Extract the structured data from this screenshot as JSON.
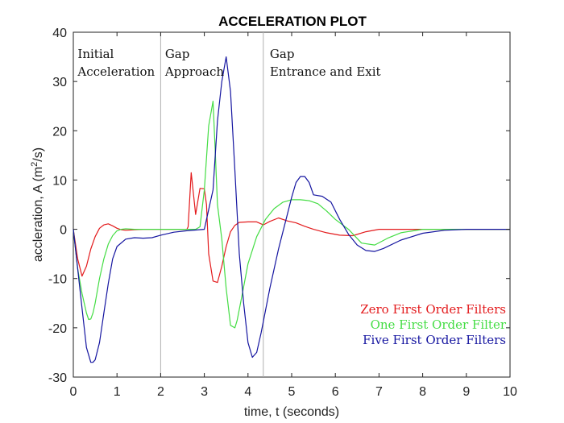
{
  "chart_data": {
    "type": "line",
    "title": "ACCELERATION PLOT",
    "xlabel": "time, t (seconds)",
    "ylabel_main": "accleration, A (m",
    "ylabel_sup": "2",
    "ylabel_tail": "/s)",
    "xlim": [
      0,
      10
    ],
    "ylim": [
      -30,
      40
    ],
    "xticks": [
      0,
      1,
      2,
      3,
      4,
      5,
      6,
      7,
      8,
      9,
      10
    ],
    "yticks": [
      -30,
      -20,
      -10,
      0,
      10,
      20,
      30,
      40
    ],
    "grid": false,
    "legend_position": "bottom-right",
    "phase_dividers": [
      2.0,
      4.35
    ],
    "annotations": [
      {
        "x": 0.1,
        "lines": [
          "Initial",
          "Acceleration"
        ]
      },
      {
        "x": 2.1,
        "lines": [
          "Gap",
          "Approach"
        ]
      },
      {
        "x": 4.5,
        "lines": [
          "Gap",
          "Entrance and Exit"
        ]
      }
    ],
    "series": [
      {
        "name": "Zero First Order Filters",
        "color": "#e31a1c",
        "x": [
          0,
          0.1,
          0.2,
          0.3,
          0.4,
          0.5,
          0.6,
          0.7,
          0.8,
          0.9,
          1.0,
          1.1,
          1.2,
          1.4,
          1.6,
          1.8,
          2.0,
          2.2,
          2.4,
          2.6,
          2.63,
          2.7,
          2.8,
          2.9,
          3.0,
          3.05,
          3.1,
          3.2,
          3.3,
          3.4,
          3.5,
          3.6,
          3.7,
          3.8,
          4.0,
          4.2,
          4.35,
          4.5,
          4.7,
          4.9,
          5.1,
          5.3,
          5.5,
          5.8,
          6.1,
          6.4,
          6.7,
          7.0,
          7.5,
          8.0,
          9.0,
          10.0
        ],
        "y": [
          0,
          -6,
          -9.5,
          -7.5,
          -4,
          -1.5,
          0.2,
          0.9,
          1.1,
          0.7,
          0.2,
          -0.1,
          -0.2,
          -0.1,
          0,
          0,
          0,
          0,
          0,
          0,
          0.5,
          11.5,
          3,
          8.3,
          8.2,
          5,
          -5,
          -10.5,
          -10.8,
          -7.5,
          -3.5,
          -0.5,
          0.8,
          1.4,
          1.5,
          1.5,
          0.9,
          1.6,
          2.3,
          1.7,
          1.3,
          0.6,
          0,
          -0.7,
          -1.2,
          -1.3,
          -0.5,
          0,
          0,
          0,
          0,
          0
        ]
      },
      {
        "name": "One First Order Filter",
        "color": "#44dd44",
        "x": [
          0,
          0.1,
          0.2,
          0.3,
          0.35,
          0.4,
          0.45,
          0.5,
          0.6,
          0.7,
          0.8,
          0.9,
          1.0,
          1.1,
          1.2,
          1.4,
          1.6,
          1.8,
          2.0,
          2.4,
          2.8,
          2.9,
          3.0,
          3.1,
          3.2,
          3.25,
          3.3,
          3.4,
          3.5,
          3.6,
          3.7,
          3.75,
          3.85,
          4.0,
          4.2,
          4.4,
          4.6,
          4.8,
          5.0,
          5.2,
          5.4,
          5.6,
          5.8,
          6.0,
          6.3,
          6.6,
          6.9,
          7.2,
          7.5,
          8.0,
          8.5,
          9.0,
          10.0
        ],
        "y": [
          0,
          -8,
          -13,
          -17,
          -18.3,
          -18.2,
          -17,
          -15,
          -10,
          -6,
          -3,
          -1.3,
          -0.3,
          0,
          0.1,
          0,
          0,
          0,
          0,
          0,
          0,
          0.5,
          8,
          21,
          26,
          16,
          5,
          -2,
          -12,
          -19.5,
          -20,
          -18.5,
          -14,
          -7,
          -1.5,
          2,
          4.2,
          5.5,
          6,
          6,
          5.8,
          5.2,
          3.7,
          2,
          0,
          -2.8,
          -3.2,
          -1.8,
          -0.7,
          0,
          0,
          0,
          0
        ]
      },
      {
        "name": "Five First Order Filters",
        "color": "#1515a0",
        "x": [
          0,
          0.1,
          0.2,
          0.3,
          0.4,
          0.45,
          0.5,
          0.6,
          0.7,
          0.8,
          0.9,
          1.0,
          1.2,
          1.4,
          1.6,
          1.8,
          2.0,
          2.3,
          2.6,
          3.0,
          3.2,
          3.3,
          3.4,
          3.5,
          3.6,
          3.7,
          3.8,
          3.9,
          4.0,
          4.1,
          4.2,
          4.3,
          4.5,
          4.7,
          4.9,
          5.0,
          5.1,
          5.2,
          5.3,
          5.4,
          5.5,
          5.7,
          5.9,
          6.1,
          6.3,
          6.5,
          6.7,
          6.9,
          7.1,
          7.5,
          8.0,
          8.5,
          9.0,
          10.0
        ],
        "y": [
          0,
          -8,
          -16,
          -24,
          -27,
          -27,
          -26.5,
          -23,
          -17,
          -11,
          -6,
          -3.5,
          -2,
          -1.7,
          -1.8,
          -1.7,
          -1.2,
          -0.6,
          -0.3,
          0,
          8,
          22,
          30,
          35,
          28,
          12,
          -5,
          -15,
          -23,
          -26,
          -25,
          -21,
          -12,
          -4,
          3,
          6.5,
          9.5,
          10.7,
          10.7,
          9.5,
          7,
          6.7,
          5.5,
          2,
          -1,
          -3.2,
          -4.3,
          -4.5,
          -3.9,
          -2.2,
          -0.8,
          -0.2,
          0,
          0
        ]
      }
    ]
  }
}
